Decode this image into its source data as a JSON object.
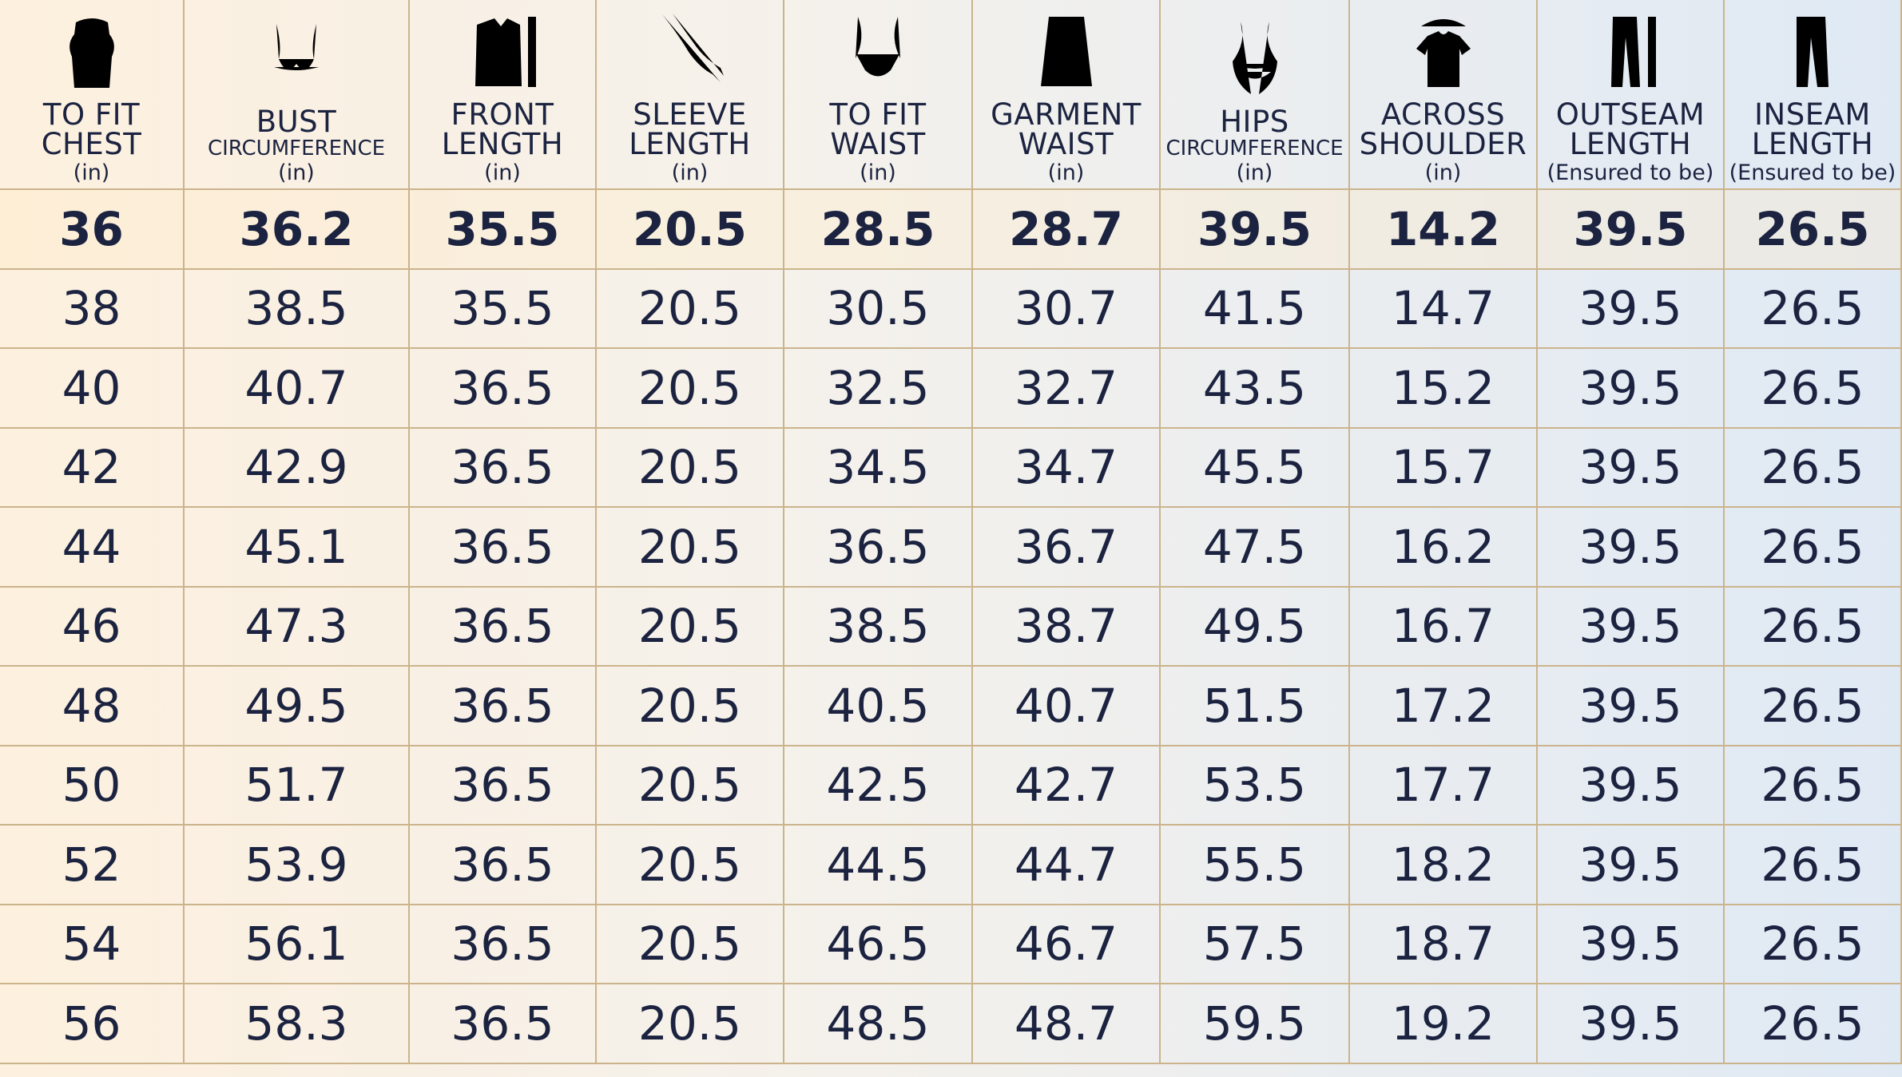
{
  "table": {
    "columns": [
      {
        "title": [
          "TO FIT",
          "CHEST"
        ],
        "unit": "(in)"
      },
      {
        "title": [
          "BUST"
        ],
        "subtitle": "CIRCUMFERENCE",
        "unit": "(in)"
      },
      {
        "title": [
          "FRONT",
          "LENGTH"
        ],
        "unit": "(in)"
      },
      {
        "title": [
          "SLEEVE",
          "LENGTH"
        ],
        "unit": "(in)"
      },
      {
        "title": [
          "TO FIT",
          "WAIST"
        ],
        "unit": "(in)"
      },
      {
        "title": [
          "GARMENT",
          "WAIST"
        ],
        "unit": "(in)"
      },
      {
        "title": [
          "HIPS"
        ],
        "subtitle": "CIRCUMFERENCE",
        "unit": "(in)"
      },
      {
        "title": [
          "ACROSS",
          "SHOULDER"
        ],
        "unit": "(in)"
      },
      {
        "title": [
          "OUTSEAM",
          "LENGTH"
        ],
        "unit": "(Ensured to be)"
      },
      {
        "title": [
          "INSEAM",
          "LENGTH"
        ],
        "unit": "(Ensured to be)"
      }
    ],
    "rows": [
      [
        36,
        36.2,
        35.5,
        20.5,
        28.5,
        28.7,
        39.5,
        14.2,
        39.5,
        26.5
      ],
      [
        38,
        38.5,
        35.5,
        20.5,
        30.5,
        30.7,
        41.5,
        14.7,
        39.5,
        26.5
      ],
      [
        40,
        40.7,
        36.5,
        20.5,
        32.5,
        32.7,
        43.5,
        15.2,
        39.5,
        26.5
      ],
      [
        42,
        42.9,
        36.5,
        20.5,
        34.5,
        34.7,
        45.5,
        15.7,
        39.5,
        26.5
      ],
      [
        44,
        45.1,
        36.5,
        20.5,
        36.5,
        36.7,
        47.5,
        16.2,
        39.5,
        26.5
      ],
      [
        46,
        47.3,
        36.5,
        20.5,
        38.5,
        38.7,
        49.5,
        16.7,
        39.5,
        26.5
      ],
      [
        48,
        49.5,
        36.5,
        20.5,
        40.5,
        40.7,
        51.5,
        17.2,
        39.5,
        26.5
      ],
      [
        50,
        51.7,
        36.5,
        20.5,
        42.5,
        42.7,
        53.5,
        17.7,
        39.5,
        26.5
      ],
      [
        52,
        53.9,
        36.5,
        20.5,
        44.5,
        44.7,
        55.5,
        18.2,
        39.5,
        26.5
      ],
      [
        54,
        56.1,
        36.5,
        20.5,
        46.5,
        46.7,
        57.5,
        18.7,
        39.5,
        26.5
      ],
      [
        56,
        58.3,
        36.5,
        20.5,
        48.5,
        48.7,
        59.5,
        19.2,
        39.5,
        26.5
      ]
    ]
  }
}
